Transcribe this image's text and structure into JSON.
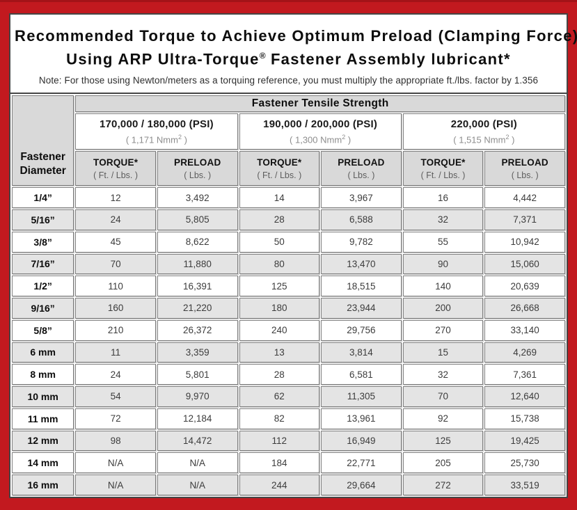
{
  "colors": {
    "frame_red": "#c2191f",
    "frame_red_dark": "#a31318",
    "border_dark": "#454545",
    "header_gray": "#d9d9d9",
    "stripe_gray": "#e4e4e4"
  },
  "header": {
    "title_line1": "Recommended Torque to Achieve Optimum Preload (Clamping Force)",
    "title_line2_pre": "Using ARP Ultra-Torque",
    "title_line2_sup": "®",
    "title_line2_post": " Fastener Assembly lubricant*",
    "note": "Note: For those using Newton/meters as a torquing reference, you must multiply the appropriate ft./lbs. factor by 1.356"
  },
  "table": {
    "corner_label": "Fastener Diameter",
    "tensile_header": "Fastener Tensile Strength",
    "groups": [
      {
        "psi": "170,000 / 180,000 (PSI)",
        "nmm_pre": "( 1,171 Nmm",
        "nmm_sup": "2",
        "nmm_post": " )"
      },
      {
        "psi": "190,000 / 200,000 (PSI)",
        "nmm_pre": "( 1,300 Nmm",
        "nmm_sup": "2",
        "nmm_post": " )"
      },
      {
        "psi": "220,000 (PSI)",
        "nmm_pre": "( 1,515 Nmm",
        "nmm_sup": "2",
        "nmm_post": " )"
      }
    ],
    "col_headers": {
      "torque": "TORQUE*",
      "torque_unit": "( Ft. / Lbs. )",
      "preload": "PRELOAD",
      "preload_unit": "( Lbs. )"
    },
    "rows": [
      {
        "label": "1/4”",
        "values": [
          "12",
          "3,492",
          "14",
          "3,967",
          "16",
          "4,442"
        ]
      },
      {
        "label": "5/16”",
        "values": [
          "24",
          "5,805",
          "28",
          "6,588",
          "32",
          "7,371"
        ]
      },
      {
        "label": "3/8”",
        "values": [
          "45",
          "8,622",
          "50",
          "9,782",
          "55",
          "10,942"
        ]
      },
      {
        "label": "7/16”",
        "values": [
          "70",
          "11,880",
          "80",
          "13,470",
          "90",
          "15,060"
        ]
      },
      {
        "label": "1/2”",
        "values": [
          "110",
          "16,391",
          "125",
          "18,515",
          "140",
          "20,639"
        ]
      },
      {
        "label": "9/16”",
        "values": [
          "160",
          "21,220",
          "180",
          "23,944",
          "200",
          "26,668"
        ]
      },
      {
        "label": "5/8”",
        "values": [
          "210",
          "26,372",
          "240",
          "29,756",
          "270",
          "33,140"
        ]
      },
      {
        "label": "6 mm",
        "values": [
          "11",
          "3,359",
          "13",
          "3,814",
          "15",
          "4,269"
        ]
      },
      {
        "label": "8 mm",
        "values": [
          "24",
          "5,801",
          "28",
          "6,581",
          "32",
          "7,361"
        ]
      },
      {
        "label": "10 mm",
        "values": [
          "54",
          "9,970",
          "62",
          "11,305",
          "70",
          "12,640"
        ]
      },
      {
        "label": "11 mm",
        "values": [
          "72",
          "12,184",
          "82",
          "13,961",
          "92",
          "15,738"
        ]
      },
      {
        "label": "12 mm",
        "values": [
          "98",
          "14,472",
          "112",
          "16,949",
          "125",
          "19,425"
        ]
      },
      {
        "label": "14 mm",
        "values": [
          "N/A",
          "N/A",
          "184",
          "22,771",
          "205",
          "25,730"
        ]
      },
      {
        "label": "16 mm",
        "values": [
          "N/A",
          "N/A",
          "244",
          "29,664",
          "272",
          "33,519"
        ]
      }
    ]
  }
}
